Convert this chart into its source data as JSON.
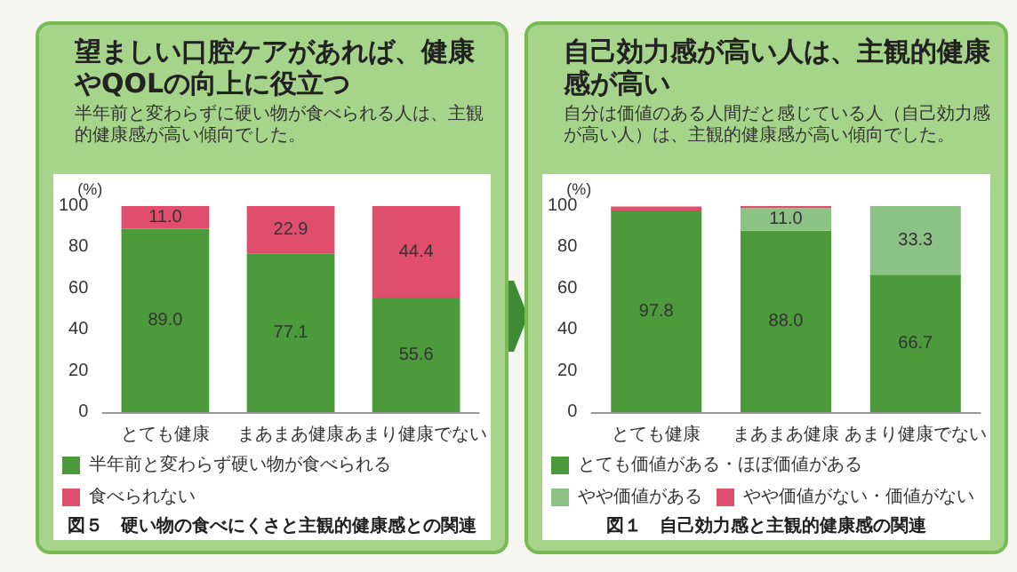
{
  "chart_data": [
    {
      "type": "bar",
      "title": "望ましい口腔ケアがあれば、健康やQOLの向上に役立つ",
      "subtitle": "半年前と変わらずに硬い物が食べられる人は、主観的健康感が高い傾向でした。",
      "ylabel": "(%)",
      "annotations": [
        "図５　硬い物の食べにくさと主観的健康感との関連"
      ],
      "categories": [
        "とても健康",
        "まあまあ健康",
        "あまり健康でない"
      ],
      "stacked": true,
      "series": [
        {
          "name": "半年前と変わらず硬い物が食べられる",
          "color": "#4c9a3c",
          "values": [
            89.0,
            77.1,
            55.6
          ],
          "value_labels": [
            "89.0",
            "77.1",
            "55.6"
          ]
        },
        {
          "name": "食べられない",
          "color": "#df4f6d",
          "values": [
            11.0,
            22.9,
            44.4
          ],
          "value_labels": [
            "11.0",
            "22.9",
            "44.4"
          ]
        }
      ],
      "ylim": [
        0,
        100
      ],
      "yticks": [
        0,
        20,
        40,
        60,
        80,
        100
      ],
      "legend": "bottom"
    },
    {
      "type": "bar",
      "title": "自己効力感が高い人は、主観的健康感が高い",
      "subtitle": "自分は価値のある人間だと感じている人（自己効力感が高い人）は、主観的健康感が高い傾向でした。",
      "ylabel": "(%)",
      "annotations": [
        "図１　自己効力感と主観的健康感の関連"
      ],
      "categories": [
        "とても健康",
        "まあまあ健康",
        "あまり健康でない"
      ],
      "stacked": true,
      "series": [
        {
          "name": "とても価値がある・ほぼ価値がある",
          "color": "#4c9a3c",
          "values": [
            97.8,
            88.0,
            66.7
          ],
          "value_labels": [
            "97.8",
            "88.0",
            "66.7"
          ]
        },
        {
          "name": "やや価値がある",
          "color": "#8cc285",
          "values": [
            0,
            11.0,
            33.3
          ],
          "value_labels": [
            null,
            "11.0",
            "33.3"
          ]
        },
        {
          "name": "やや価値がない・価値がない",
          "color": "#df4f6d",
          "values": [
            2,
            1,
            0
          ],
          "value_labels": [
            null,
            null,
            null
          ]
        }
      ],
      "ylim": [
        0,
        100
      ],
      "yticks": [
        0,
        20,
        40,
        60,
        80,
        100
      ],
      "legend": "bottom"
    }
  ]
}
